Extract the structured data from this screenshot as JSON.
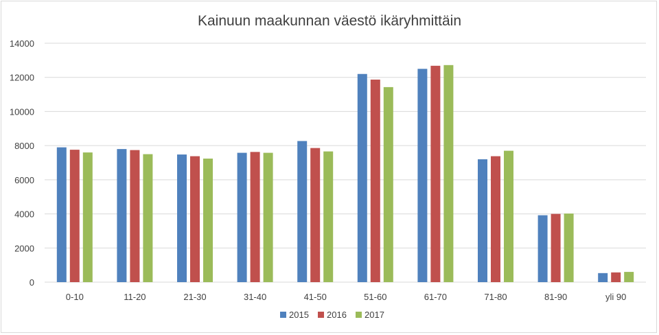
{
  "chart_data": {
    "type": "bar",
    "title": "Kainuun maakunnan väestö ikäryhmittäin",
    "xlabel": "",
    "ylabel": "",
    "ylim": [
      0,
      14000
    ],
    "yticks": [
      "0",
      "2000",
      "4000",
      "6000",
      "8000",
      "10000",
      "12000",
      "14000"
    ],
    "grid": true,
    "legend_position": "bottom",
    "categories": [
      "0-10",
      "11-20",
      "21-30",
      "31-40",
      "41-50",
      "51-60",
      "61-70",
      "71-80",
      "81-90",
      "yli 90"
    ],
    "series": [
      {
        "name": "2015",
        "color": "#4f81bd",
        "values": [
          7900,
          7800,
          7480,
          7580,
          8270,
          12200,
          12500,
          7200,
          3920,
          530
        ]
      },
      {
        "name": "2016",
        "color": "#c0504d",
        "values": [
          7760,
          7740,
          7380,
          7630,
          7860,
          11870,
          12680,
          7380,
          4000,
          570
        ]
      },
      {
        "name": "2017",
        "color": "#9bbb59",
        "values": [
          7600,
          7500,
          7240,
          7580,
          7660,
          11430,
          12720,
          7700,
          4020,
          600
        ]
      }
    ]
  }
}
